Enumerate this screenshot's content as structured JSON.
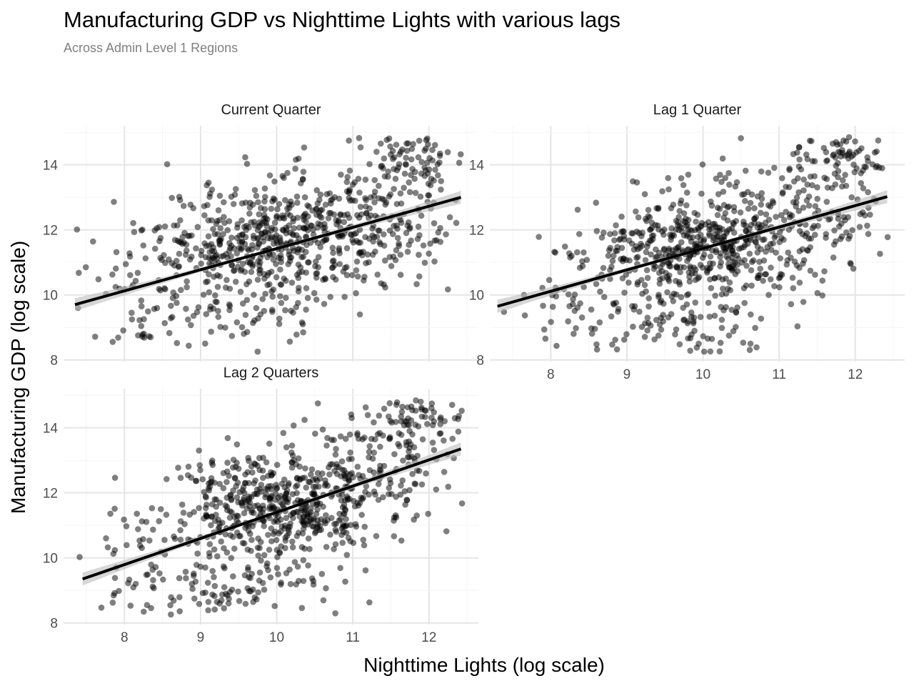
{
  "title": "Manufacturing GDP vs Nighttime Lights with various lags",
  "subtitle": "Across Admin Level 1 Regions",
  "chart_data": {
    "type": "scatter",
    "xlabel": "Nighttime Lights (log scale)",
    "ylabel": "Manufacturing GDP (log scale)",
    "xlim": [
      7.2,
      12.65
    ],
    "ylim": [
      7.95,
      15.2
    ],
    "x_ticks": [
      8,
      9,
      10,
      11,
      12
    ],
    "y_ticks": [
      8,
      10,
      12,
      14
    ],
    "x_tick_labels": [
      "8",
      "9",
      "10",
      "11",
      "12"
    ],
    "y_tick_labels": [
      "8",
      "10",
      "12",
      "14"
    ],
    "point_color": "#000000",
    "point_opacity": 0.5,
    "fit_line_color": "#000000",
    "ci_band_color": "#bdbdbd",
    "points_per_panel": 850,
    "panels": [
      {
        "name": "Current Quarter",
        "fit": {
          "x": [
            7.35,
            12.42
          ],
          "y": [
            9.7,
            13.0
          ]
        },
        "ci_halfwidth": {
          "ends": 0.2,
          "center": 0.05
        },
        "clusters": [
          {
            "n": 500,
            "cx": 10.0,
            "cy": 11.7,
            "sx": 0.75,
            "sy": 0.85
          },
          {
            "n": 150,
            "cx": 11.35,
            "cy": 12.7,
            "sx": 0.6,
            "sy": 1.0
          },
          {
            "n": 60,
            "cx": 11.85,
            "cy": 14.2,
            "sx": 0.35,
            "sy": 0.45
          },
          {
            "n": 80,
            "cx": 9.3,
            "cy": 9.3,
            "sx": 0.7,
            "sy": 0.6
          },
          {
            "n": 60,
            "cx": 8.3,
            "cy": 10.2,
            "sx": 0.5,
            "sy": 1.1
          }
        ]
      },
      {
        "name": "Lag 1 Quarter",
        "fit": {
          "x": [
            7.3,
            12.42
          ],
          "y": [
            9.65,
            13.02
          ]
        },
        "ci_halfwidth": {
          "ends": 0.2,
          "center": 0.05
        },
        "clusters": [
          {
            "n": 520,
            "cx": 10.0,
            "cy": 11.5,
            "sx": 0.7,
            "sy": 0.85
          },
          {
            "n": 140,
            "cx": 11.4,
            "cy": 12.8,
            "sx": 0.55,
            "sy": 0.95
          },
          {
            "n": 55,
            "cx": 11.9,
            "cy": 14.3,
            "sx": 0.35,
            "sy": 0.4
          },
          {
            "n": 75,
            "cx": 9.6,
            "cy": 9.0,
            "sx": 0.6,
            "sy": 0.5
          },
          {
            "n": 60,
            "cx": 8.3,
            "cy": 10.0,
            "sx": 0.5,
            "sy": 0.9
          }
        ]
      },
      {
        "name": "Lag 2 Quarters",
        "fit": {
          "x": [
            7.45,
            12.42
          ],
          "y": [
            9.35,
            13.35
          ]
        },
        "ci_halfwidth": {
          "ends": 0.2,
          "center": 0.05
        },
        "clusters": [
          {
            "n": 520,
            "cx": 10.0,
            "cy": 11.6,
            "sx": 0.7,
            "sy": 0.85
          },
          {
            "n": 140,
            "cx": 11.35,
            "cy": 12.8,
            "sx": 0.55,
            "sy": 0.9
          },
          {
            "n": 55,
            "cx": 11.9,
            "cy": 14.3,
            "sx": 0.35,
            "sy": 0.4
          },
          {
            "n": 75,
            "cx": 9.6,
            "cy": 9.2,
            "sx": 0.6,
            "sy": 0.5
          },
          {
            "n": 60,
            "cx": 8.3,
            "cy": 9.5,
            "sx": 0.5,
            "sy": 0.9
          }
        ]
      }
    ]
  }
}
